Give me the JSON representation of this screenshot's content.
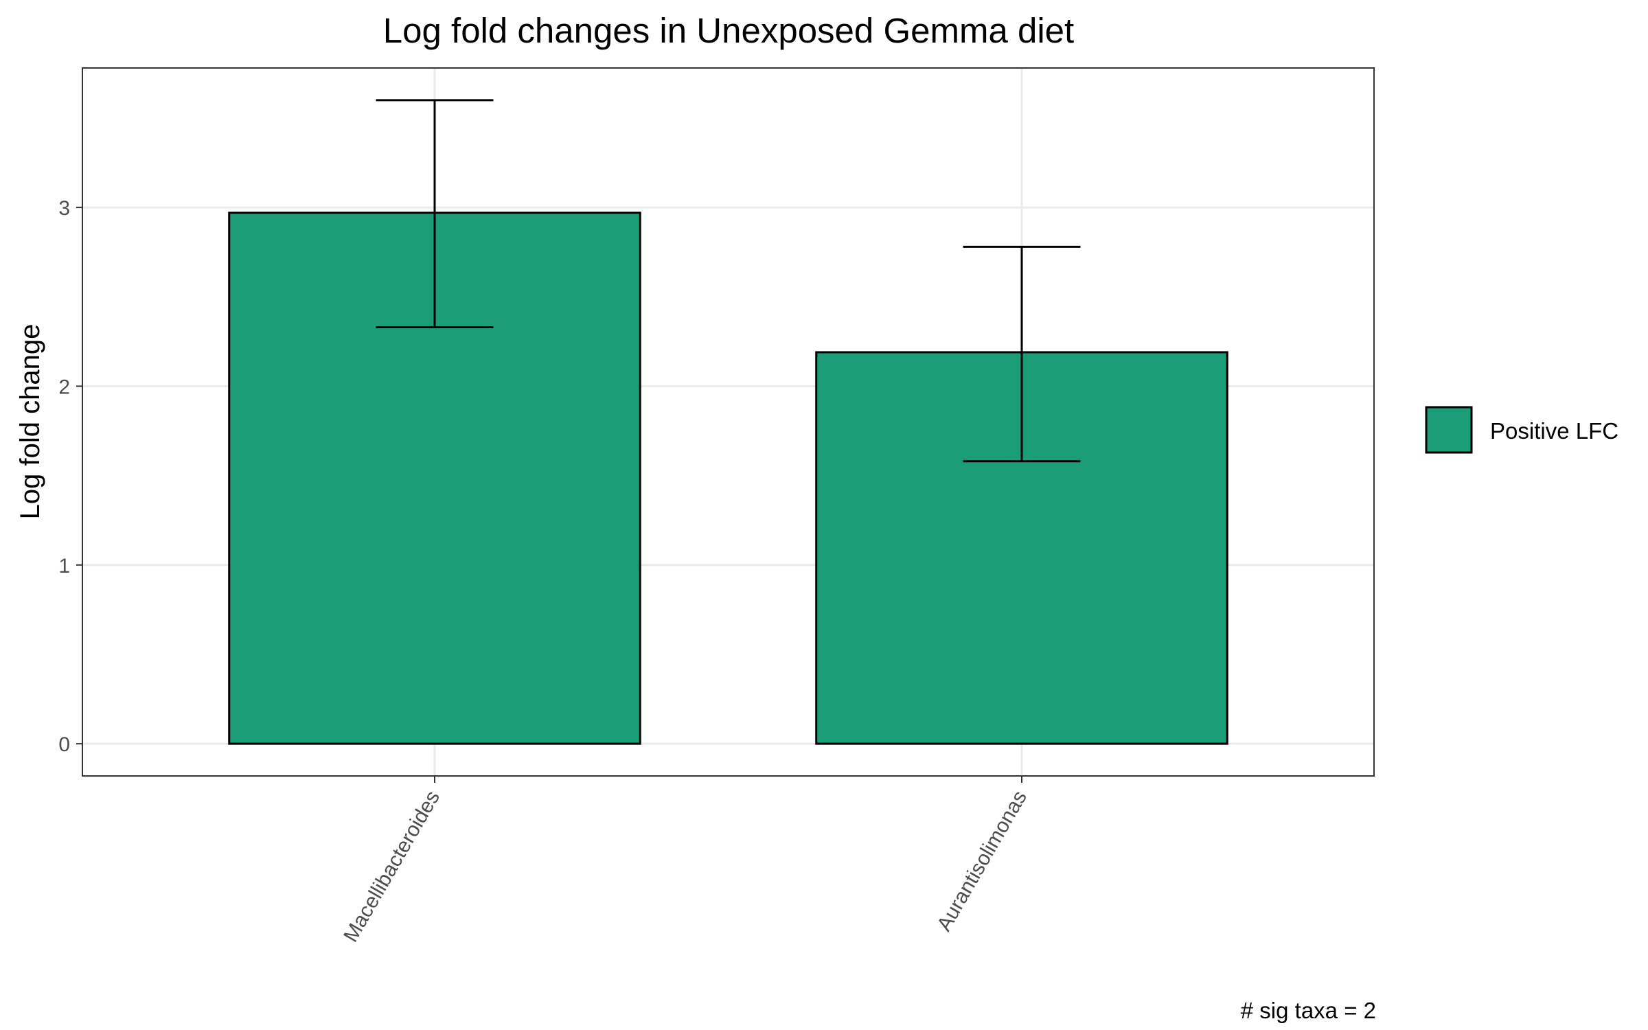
{
  "chart_data": {
    "type": "bar",
    "title": "Log fold changes in Unexposed Gemma diet",
    "xlabel": "",
    "ylabel": "Log fold change",
    "categories": [
      "Macellibacteroides",
      "Aurantisolimonas"
    ],
    "values": [
      2.97,
      2.19
    ],
    "error_low": [
      2.33,
      1.58
    ],
    "error_high": [
      3.6,
      2.78
    ],
    "series": [
      {
        "name": "Positive LFC",
        "values": [
          2.97,
          2.19
        ],
        "color": "#1b9e77"
      }
    ],
    "ylim": [
      -0.18,
      3.78
    ],
    "yticks": [
      "0",
      "1",
      "2",
      "3"
    ],
    "grid": true,
    "legend_position": "right",
    "caption": "# sig taxa = 2"
  }
}
